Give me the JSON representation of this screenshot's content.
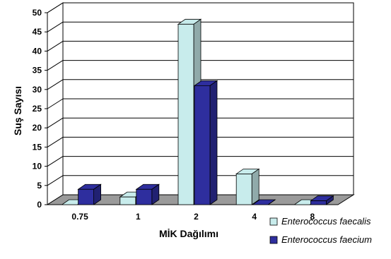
{
  "chart_data": {
    "type": "bar",
    "title": "",
    "xlabel": "MİK Dağılımı",
    "ylabel": "Suş Sayısı",
    "ylim": [
      0,
      50
    ],
    "yticks": [
      0,
      5,
      10,
      15,
      20,
      25,
      30,
      35,
      40,
      45,
      50
    ],
    "categories": [
      "0.75",
      "1",
      "2",
      "4",
      "8"
    ],
    "grid": true,
    "legend_position": "bottom-right",
    "series": [
      {
        "name": "Enterococcus faecalis",
        "color": "#c8ecec",
        "values": [
          0,
          2,
          47,
          8,
          0
        ]
      },
      {
        "name": "Enterococcus faecium",
        "color": "#2e2e9e",
        "values": [
          4,
          4,
          31,
          0,
          1
        ]
      }
    ]
  }
}
